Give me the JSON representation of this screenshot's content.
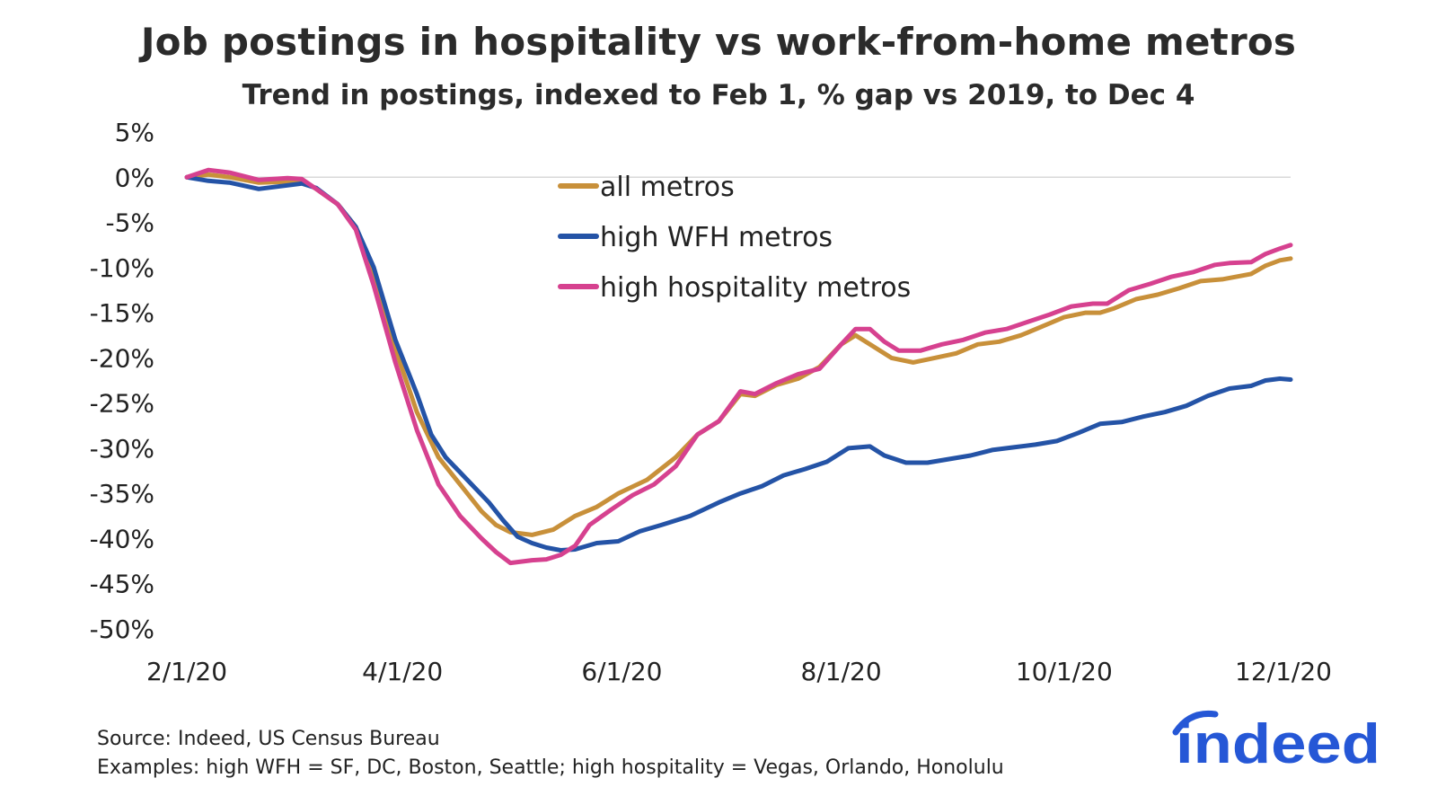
{
  "title": "Job postings in hospitality vs work-from-home metros",
  "subtitle": "Trend in postings, indexed to Feb 1, % gap vs 2019, to Dec 4",
  "footer": {
    "source": "Source: Indeed, US Census Bureau",
    "examples": "Examples: high WFH = SF, DC, Boston, Seattle; high hospitality = Vegas, Orlando, Honolulu"
  },
  "logo_text": "indeed",
  "colors": {
    "all": "#C8903A",
    "wfh": "#2453A6",
    "hosp": "#D6418F",
    "grid": "#D9D9D9",
    "logo": "#2557D6"
  },
  "chart_data": {
    "type": "line",
    "title": "Job postings in hospitality vs work-from-home metros",
    "subtitle": "Trend in postings, indexed to Feb 1, % gap vs 2019, to Dec 4",
    "xlabel": "",
    "ylabel": "",
    "x_unit": "days since 2/1/20",
    "xlim": [
      0,
      307
    ],
    "ylim": [
      -50,
      5
    ],
    "yticks": [
      5,
      0,
      -5,
      -10,
      -15,
      -20,
      -25,
      -30,
      -35,
      -40,
      -45,
      -50
    ],
    "ytick_labels": [
      "5%",
      "0%",
      "-5%",
      "-10%",
      "-15%",
      "-20%",
      "-25%",
      "-30%",
      "-35%",
      "-40%",
      "-45%",
      "-50%"
    ],
    "xticks": [
      0,
      60,
      121,
      182,
      244,
      305
    ],
    "xtick_labels": [
      "2/1/20",
      "4/1/20",
      "6/1/20",
      "8/1/20",
      "10/1/20",
      "12/1/20"
    ],
    "gridlines": [
      0
    ],
    "legend_position": "top-center",
    "series": [
      {
        "key": "all",
        "name": "all metros",
        "color": "#C8903A",
        "points": [
          [
            0,
            0
          ],
          [
            6,
            0.3
          ],
          [
            12,
            0
          ],
          [
            20,
            -0.6
          ],
          [
            28,
            -0.5
          ],
          [
            32,
            -0.3
          ],
          [
            36,
            -1.3
          ],
          [
            42,
            -3
          ],
          [
            47,
            -5.5
          ],
          [
            52,
            -11
          ],
          [
            58,
            -19
          ],
          [
            64,
            -26
          ],
          [
            70,
            -31
          ],
          [
            76,
            -34
          ],
          [
            82,
            -37
          ],
          [
            86,
            -38.5
          ],
          [
            90,
            -39.3
          ],
          [
            96,
            -39.6
          ],
          [
            102,
            -39
          ],
          [
            108,
            -37.5
          ],
          [
            114,
            -36.5
          ],
          [
            120,
            -35
          ],
          [
            128,
            -33.5
          ],
          [
            136,
            -31
          ],
          [
            142,
            -28.5
          ],
          [
            148,
            -27
          ],
          [
            154,
            -24
          ],
          [
            158,
            -24.2
          ],
          [
            164,
            -23
          ],
          [
            170,
            -22.3
          ],
          [
            176,
            -21
          ],
          [
            182,
            -18.5
          ],
          [
            186,
            -17.5
          ],
          [
            190,
            -18.5
          ],
          [
            196,
            -20
          ],
          [
            202,
            -20.5
          ],
          [
            208,
            -20
          ],
          [
            214,
            -19.5
          ],
          [
            220,
            -18.5
          ],
          [
            226,
            -18.2
          ],
          [
            232,
            -17.5
          ],
          [
            238,
            -16.5
          ],
          [
            244,
            -15.5
          ],
          [
            250,
            -15
          ],
          [
            254,
            -15
          ],
          [
            258,
            -14.5
          ],
          [
            264,
            -13.5
          ],
          [
            270,
            -13
          ],
          [
            276,
            -12.3
          ],
          [
            282,
            -11.5
          ],
          [
            288,
            -11.3
          ],
          [
            292,
            -11
          ],
          [
            296,
            -10.7
          ],
          [
            300,
            -9.8
          ],
          [
            304,
            -9.2
          ],
          [
            307,
            -9
          ]
        ]
      },
      {
        "key": "wfh",
        "name": "high WFH metros",
        "color": "#2453A6",
        "points": [
          [
            0,
            0
          ],
          [
            6,
            -0.4
          ],
          [
            12,
            -0.6
          ],
          [
            20,
            -1.3
          ],
          [
            28,
            -0.9
          ],
          [
            32,
            -0.7
          ],
          [
            36,
            -1.2
          ],
          [
            42,
            -3
          ],
          [
            47,
            -5.5
          ],
          [
            52,
            -10
          ],
          [
            58,
            -18
          ],
          [
            64,
            -24
          ],
          [
            68,
            -28.5
          ],
          [
            72,
            -31
          ],
          [
            78,
            -33.5
          ],
          [
            84,
            -36
          ],
          [
            88,
            -38
          ],
          [
            92,
            -39.8
          ],
          [
            96,
            -40.5
          ],
          [
            100,
            -41
          ],
          [
            104,
            -41.3
          ],
          [
            108,
            -41.2
          ],
          [
            114,
            -40.5
          ],
          [
            120,
            -40.3
          ],
          [
            126,
            -39.2
          ],
          [
            132,
            -38.5
          ],
          [
            140,
            -37.5
          ],
          [
            148,
            -36
          ],
          [
            154,
            -35
          ],
          [
            160,
            -34.2
          ],
          [
            166,
            -33
          ],
          [
            172,
            -32.3
          ],
          [
            178,
            -31.5
          ],
          [
            184,
            -30
          ],
          [
            190,
            -29.8
          ],
          [
            194,
            -30.8
          ],
          [
            200,
            -31.6
          ],
          [
            206,
            -31.6
          ],
          [
            212,
            -31.2
          ],
          [
            218,
            -30.8
          ],
          [
            224,
            -30.2
          ],
          [
            230,
            -29.9
          ],
          [
            236,
            -29.6
          ],
          [
            242,
            -29.2
          ],
          [
            248,
            -28.3
          ],
          [
            254,
            -27.3
          ],
          [
            260,
            -27.1
          ],
          [
            266,
            -26.5
          ],
          [
            272,
            -26
          ],
          [
            278,
            -25.3
          ],
          [
            284,
            -24.2
          ],
          [
            290,
            -23.4
          ],
          [
            296,
            -23.1
          ],
          [
            300,
            -22.5
          ],
          [
            304,
            -22.3
          ],
          [
            307,
            -22.4
          ]
        ]
      },
      {
        "key": "hosp",
        "name": "high hospitality metros",
        "color": "#D6418F",
        "points": [
          [
            0,
            0
          ],
          [
            6,
            0.8
          ],
          [
            12,
            0.5
          ],
          [
            20,
            -0.3
          ],
          [
            28,
            -0.1
          ],
          [
            32,
            -0.2
          ],
          [
            36,
            -1.3
          ],
          [
            42,
            -3
          ],
          [
            47,
            -5.8
          ],
          [
            52,
            -12
          ],
          [
            58,
            -20.5
          ],
          [
            64,
            -28
          ],
          [
            70,
            -34
          ],
          [
            76,
            -37.5
          ],
          [
            82,
            -40
          ],
          [
            86,
            -41.5
          ],
          [
            90,
            -42.7
          ],
          [
            96,
            -42.4
          ],
          [
            100,
            -42.3
          ],
          [
            104,
            -41.8
          ],
          [
            108,
            -40.8
          ],
          [
            112,
            -38.5
          ],
          [
            118,
            -36.8
          ],
          [
            124,
            -35.2
          ],
          [
            130,
            -34
          ],
          [
            136,
            -32
          ],
          [
            142,
            -28.5
          ],
          [
            148,
            -27
          ],
          [
            154,
            -23.7
          ],
          [
            158,
            -24
          ],
          [
            164,
            -22.8
          ],
          [
            170,
            -21.8
          ],
          [
            176,
            -21.2
          ],
          [
            182,
            -18.5
          ],
          [
            186,
            -16.8
          ],
          [
            190,
            -16.8
          ],
          [
            194,
            -18.2
          ],
          [
            198,
            -19.2
          ],
          [
            204,
            -19.2
          ],
          [
            210,
            -18.5
          ],
          [
            216,
            -18
          ],
          [
            222,
            -17.2
          ],
          [
            228,
            -16.8
          ],
          [
            234,
            -16
          ],
          [
            240,
            -15.2
          ],
          [
            246,
            -14.3
          ],
          [
            252,
            -14
          ],
          [
            256,
            -14
          ],
          [
            262,
            -12.5
          ],
          [
            268,
            -11.8
          ],
          [
            274,
            -11
          ],
          [
            280,
            -10.5
          ],
          [
            286,
            -9.7
          ],
          [
            290,
            -9.5
          ],
          [
            296,
            -9.4
          ],
          [
            300,
            -8.5
          ],
          [
            304,
            -7.9
          ],
          [
            307,
            -7.5
          ]
        ]
      }
    ]
  }
}
